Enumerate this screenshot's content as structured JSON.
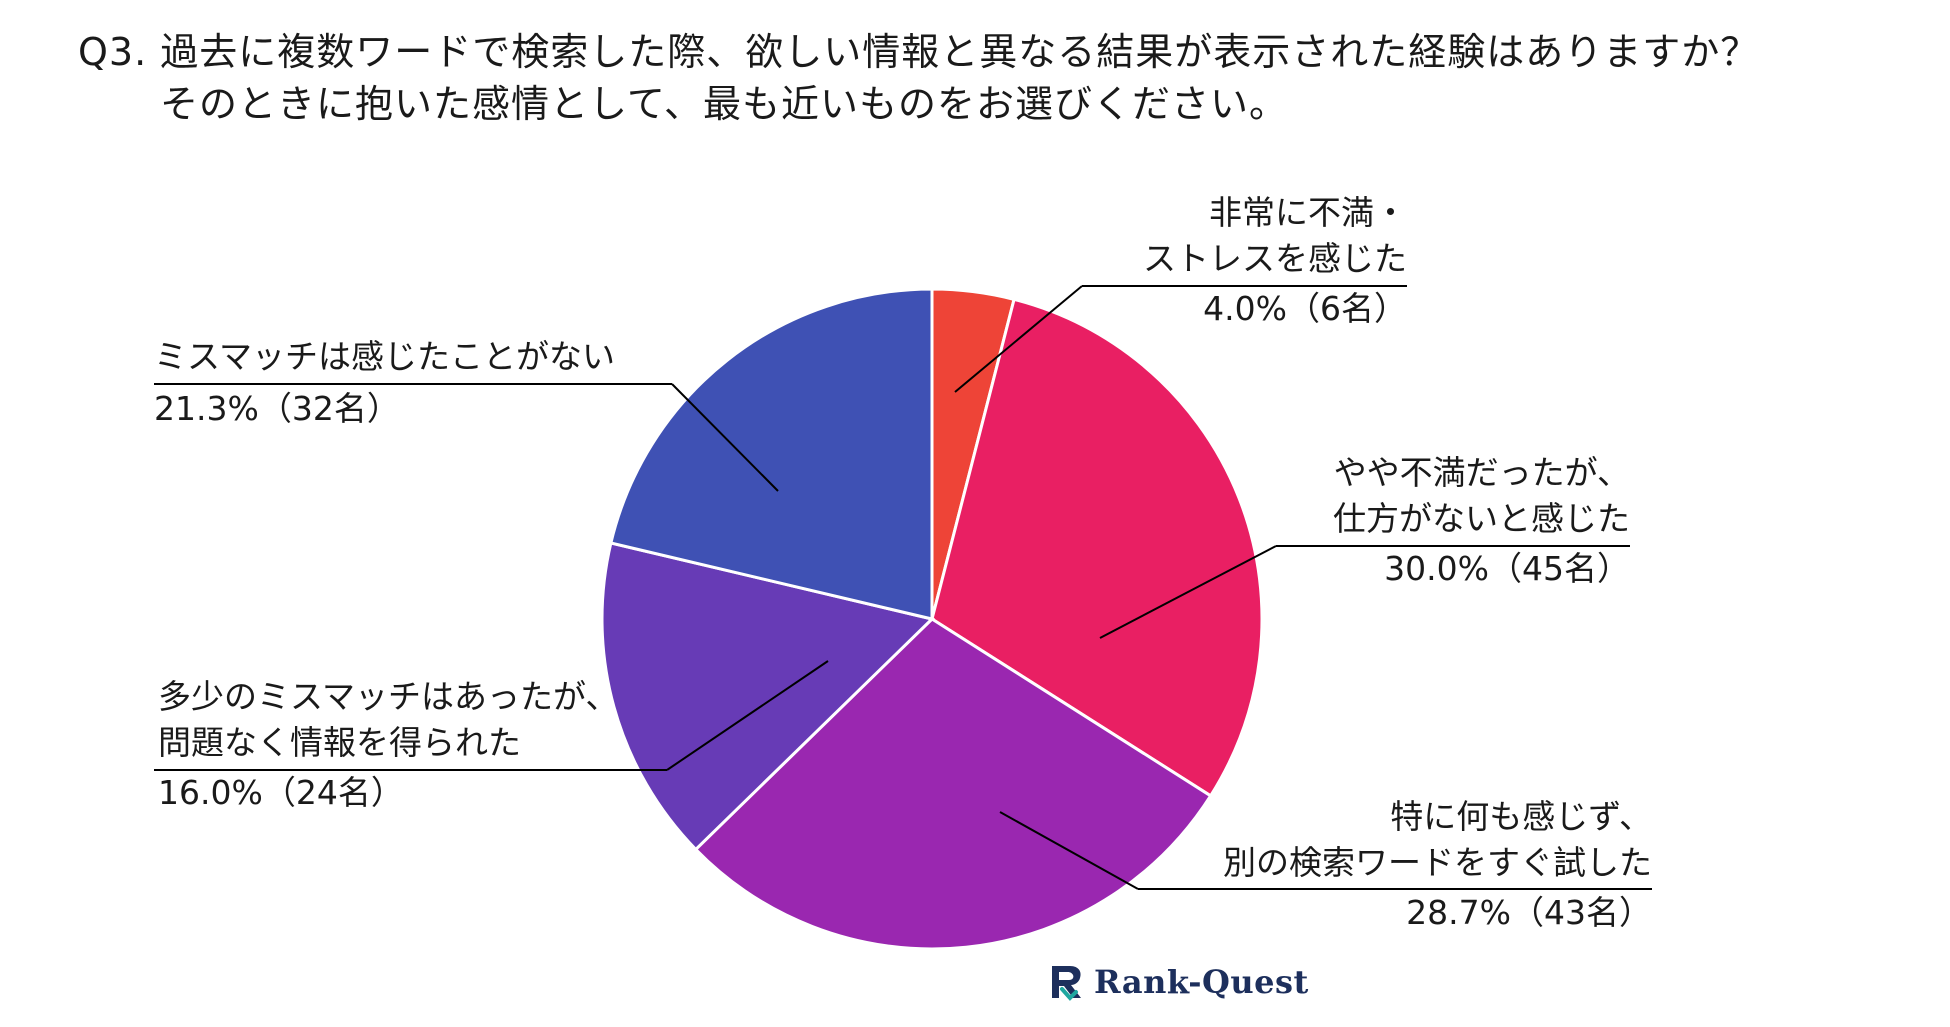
{
  "question": {
    "line1": "Q3. 過去に複数ワードで検索した際、欲しい情報と異なる結果が表示された経験はありますか？",
    "line2": "そのときに抱いた感情として、最も近いものをお選びください。"
  },
  "chart_data": {
    "type": "pie",
    "slices": [
      {
        "label": "非常に不満・ストレスを感じた",
        "value": 4.0,
        "count_label": "4.0%（6名）",
        "color": "#ee4437"
      },
      {
        "label": "やや不満だったが、仕方がないと感じた",
        "value": 30.0,
        "count_label": "30.0%（45名）",
        "color": "#e91f63"
      },
      {
        "label": "特に何も感じず、別の検索ワードをすぐ試した",
        "value": 28.7,
        "count_label": "28.7%（43名）",
        "color": "#9a27b0"
      },
      {
        "label": "多少のミスマッチはあったが、問題なく情報を得られた",
        "value": 16.0,
        "count_label": "16.0%（24名）",
        "color": "#673bb6"
      },
      {
        "label": "ミスマッチは感じたことがない",
        "value": 21.3,
        "count_label": "21.3%（32名）",
        "color": "#3f51b4"
      }
    ]
  },
  "callouts": {
    "s0": {
      "line1": "非常に不満・",
      "line2": "ストレスを感じた",
      "value": "4.0%（6名）"
    },
    "s1": {
      "line1": "やや不満だったが、",
      "line2": "仕方がないと感じた",
      "value": "30.0%（45名）"
    },
    "s2": {
      "line1": "特に何も感じず、",
      "line2": "別の検索ワードをすぐ試した",
      "value": "28.7%（43名）"
    },
    "s3": {
      "line1": "多少のミスマッチはあったが、",
      "line2": "問題なく情報を得られた",
      "value": "16.0%（24名）"
    },
    "s4": {
      "line1": "ミスマッチは感じたことがない",
      "value": "21.3%（32名）"
    }
  },
  "logo": {
    "text": "Rank-Quest",
    "icon": "rank-quest-logo-icon",
    "color": "#1d2f5c",
    "accent": "#1fa7a0"
  }
}
